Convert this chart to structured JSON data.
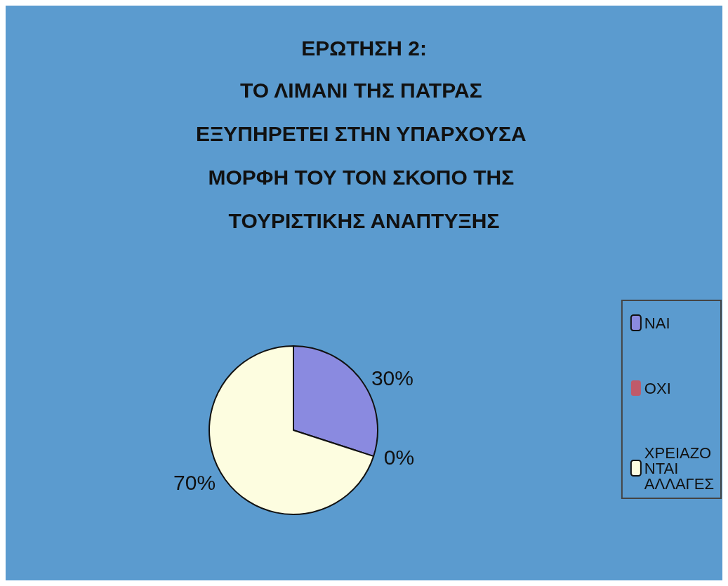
{
  "chart_data": {
    "type": "pie",
    "title": "ΕΡΩΤΗΣΗ 2:",
    "subtitle": "ΤΟ ΛΙΜΑΝΙ ΤΗΣ ΠΑΤΡΑΣ ΕΞΥΠΗΡΕΤΕΙ ΣΤΗΝ ΥΠΑΡΧΟΥΣΑ ΜΟΡΦΗ ΤΟΥ ΤΟΝ ΣΚΟΠΟ ΤΗΣ ΤΟΥΡΙΣΤΙΚΗΣ ΑΝΑΠΤΥΞΗΣ",
    "categories": [
      "ΝΑΙ",
      "ΟΧΙ",
      "ΧΡΕΙΑΖΟΝΤΑΙ ΑΛΛΑΓΕΣ"
    ],
    "values": [
      30,
      0,
      70
    ],
    "colors": [
      "#8a8ae0",
      "#c05a6a",
      "#fdfde0"
    ],
    "value_labels": [
      "30%",
      "0%",
      "70%"
    ],
    "legend": "right"
  }
}
